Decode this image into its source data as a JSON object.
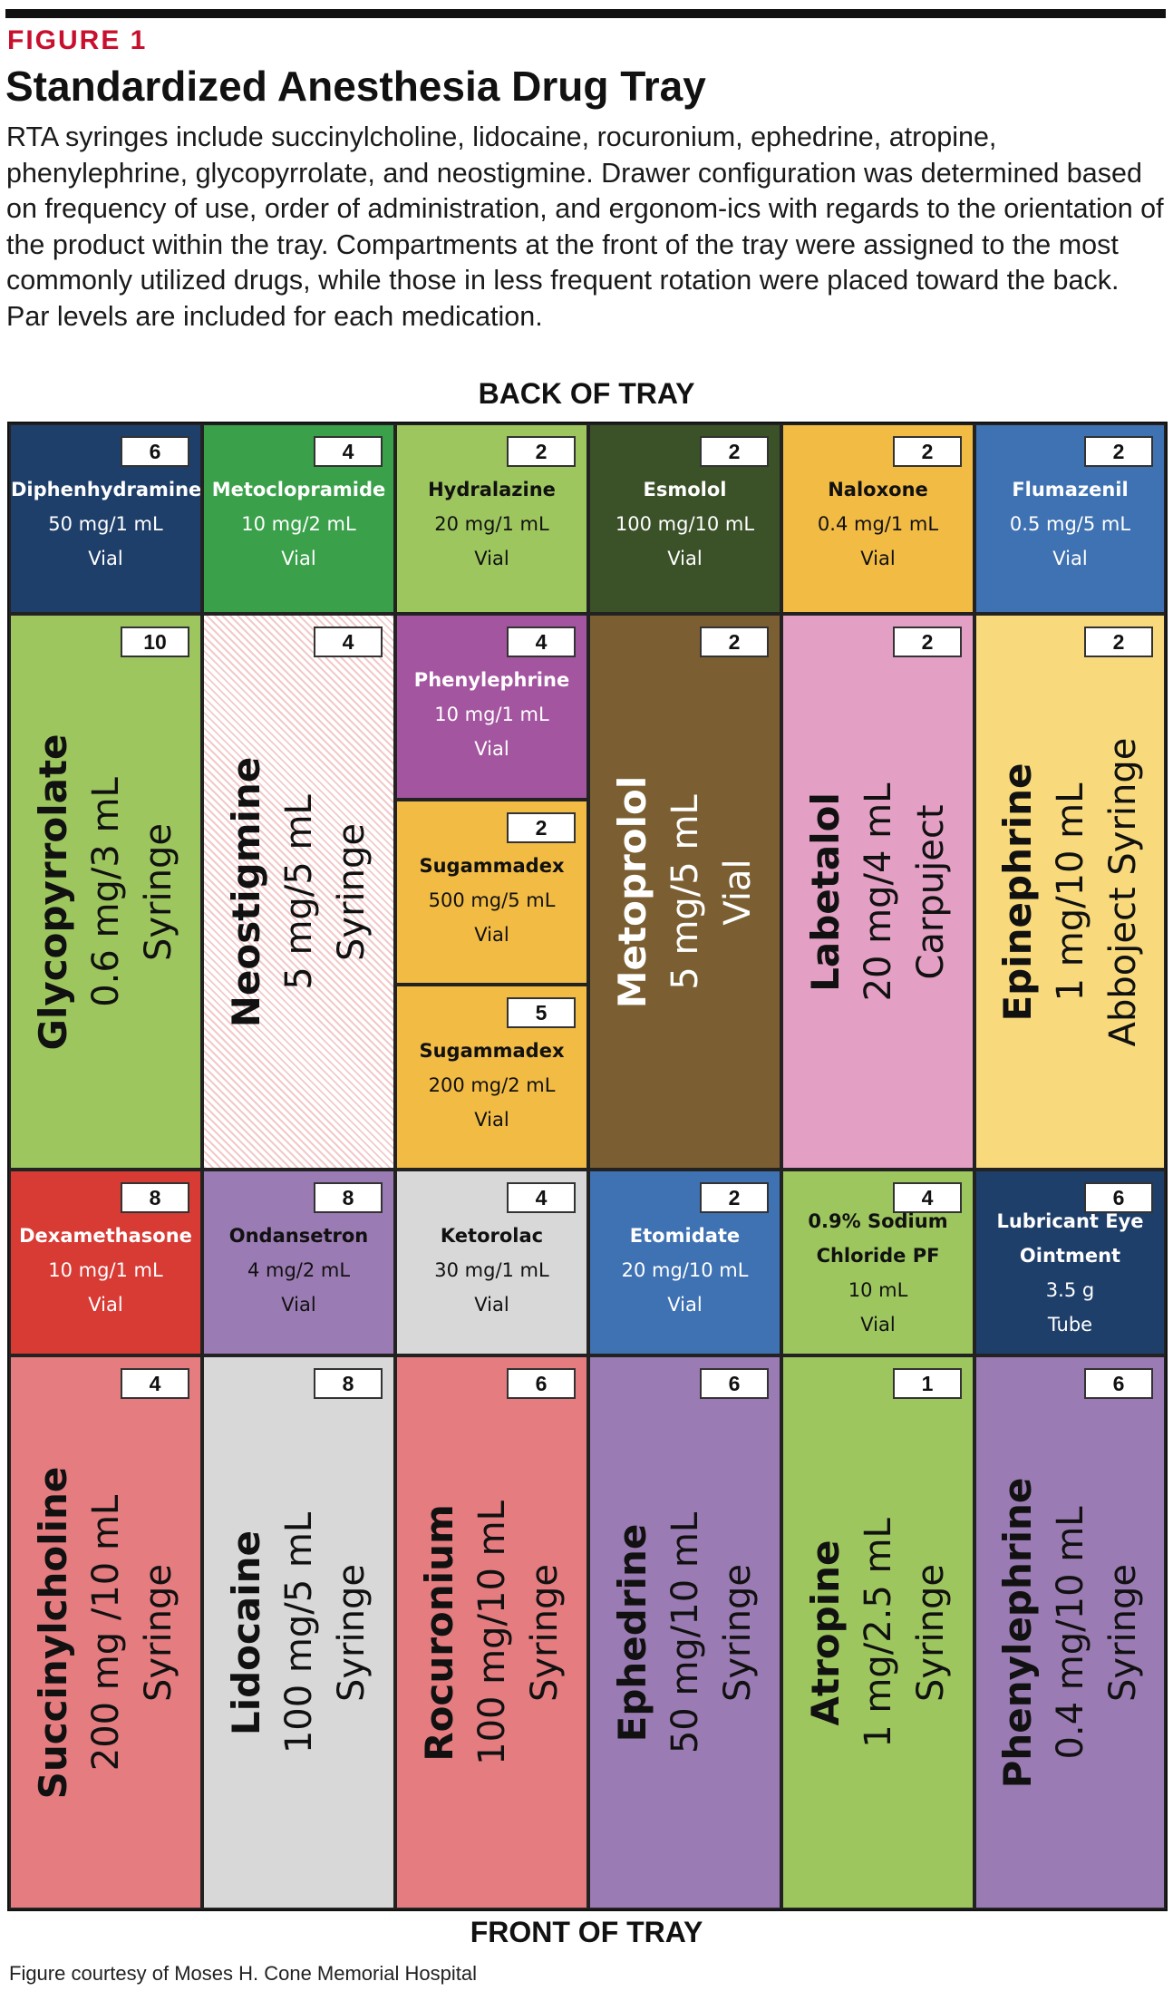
{
  "figure_label": "FIGURE 1",
  "title": "Standardized Anesthesia Drug Tray",
  "caption": "RTA syringes include succinylcholine, lidocaine, rocuronium, ephedrine, atropine, phenylephrine, glycopyrrolate, and neostigmine. Drawer configuration was determined based on frequency of use, order of administration, and ergonom-ics with regards to the orientation of the product within the tray. Compartments at the front of the tray were assigned to the most commonly utilized drugs, while those in less frequent rotation were placed toward the back. Par levels are included for each medication.",
  "back_label": "BACK OF TRAY",
  "front_label": "FRONT OF TRAY",
  "credit": "Figure courtesy of Moses H. Cone Memorial Hospital",
  "tray": {
    "row1": [
      {
        "name": "Diphenhydramine",
        "conc": "50 mg/1 mL",
        "form": "Vial",
        "par": "6",
        "color": "#1f3f6b"
      },
      {
        "name": "Metoclopramide",
        "conc": "10 mg/2 mL",
        "form": "Vial",
        "par": "4",
        "color": "#3aa04a"
      },
      {
        "name": "Hydralazine",
        "conc": "20 mg/1 mL",
        "form": "Vial",
        "par": "2",
        "color": "#9dc65f"
      },
      {
        "name": "Esmolol",
        "conc": "100 mg/10 mL",
        "form": "Vial",
        "par": "2",
        "color": "#3b5128"
      },
      {
        "name": "Naloxone",
        "conc": "0.4 mg/1 mL",
        "form": "Vial",
        "par": "2",
        "color": "#f2bb44"
      },
      {
        "name": "Flumazenil",
        "conc": "0.5 mg/5 mL",
        "form": "Vial",
        "par": "2",
        "color": "#3f72b2"
      }
    ],
    "row2": {
      "glycopyrrolate": {
        "name": "Glycopyrrolate",
        "conc": "0.6 mg/3 mL",
        "form": "Syringe",
        "par": "10",
        "color": "#9dc65f"
      },
      "neostigmine": {
        "name": "Neostigmine",
        "conc": "5 mg/5 mL",
        "form": "Syringe",
        "par": "4",
        "color": "#f3c9c9"
      },
      "phenylephrine_vial": {
        "name": "Phenylephrine",
        "conc": "10 mg/1 mL",
        "form": "Vial",
        "par": "4",
        "color": "#a4559f"
      },
      "sugammadex_500": {
        "name": "Sugammadex",
        "conc": "500 mg/5 mL",
        "form": "Vial",
        "par": "2",
        "color": "#f2bb44"
      },
      "sugammadex_200": {
        "name": "Sugammadex",
        "conc": "200 mg/2 mL",
        "form": "Vial",
        "par": "5",
        "color": "#f2bb44"
      },
      "metoprolol": {
        "name": "Metoprolol",
        "conc": "5 mg/5 mL",
        "form": "Vial",
        "par": "2",
        "color": "#7b5f32"
      },
      "labetalol": {
        "name": "Labetalol",
        "conc": "20 mg/4 mL",
        "form": "Carpuject",
        "par": "2",
        "color": "#e3a0c4"
      },
      "epinephrine": {
        "name": "Epinephrine",
        "conc": "1 mg/10 mL",
        "form": "Abboject Syringe",
        "par": "2",
        "color": "#f8da7c"
      }
    },
    "row3": [
      {
        "name": "Dexamethasone",
        "conc": "10 mg/1 mL",
        "form": "Vial",
        "par": "8",
        "color": "#d83a34"
      },
      {
        "name": "Ondansetron",
        "conc": "4 mg/2 mL",
        "form": "Vial",
        "par": "8",
        "color": "#9b7bb3"
      },
      {
        "name": "Ketorolac",
        "conc": "30 mg/1 mL",
        "form": "Vial",
        "par": "4",
        "color": "#d8d8d8"
      },
      {
        "name": "Etomidate",
        "conc": "20 mg/10 mL",
        "form": "Vial",
        "par": "2",
        "color": "#3f72b2"
      },
      {
        "name_line1": "0.9% Sodium",
        "name_line2": "Chloride PF",
        "conc": "10 mL",
        "form": "Vial",
        "par": "4",
        "color": "#9dc65f"
      },
      {
        "name_line1": "Lubricant Eye",
        "name_line2": "Ointment",
        "conc": "3.5 g",
        "form": "Tube",
        "par": "6",
        "color": "#1f3f6b"
      }
    ],
    "row4": [
      {
        "name": "Succinylcholine",
        "conc": "200 mg /10 mL",
        "form": "Syringe",
        "par": "4",
        "color": "#e47c80"
      },
      {
        "name": "Lidocaine",
        "conc": "100 mg/5 mL",
        "form": "Syringe",
        "par": "8",
        "color": "#d8d8d8"
      },
      {
        "name": "Rocuronium",
        "conc": "100 mg/10 mL",
        "form": "Syringe",
        "par": "6",
        "color": "#e47c80"
      },
      {
        "name": "Ephedrine",
        "conc": "50 mg/10 mL",
        "form": "Syringe",
        "par": "6",
        "color": "#9b7bb3"
      },
      {
        "name": "Atropine",
        "conc": "1 mg/2.5 mL",
        "form": "Syringe",
        "par": "1",
        "color": "#9dc65f"
      },
      {
        "name": "Phenylephrine",
        "conc": "0.4 mg/10 mL",
        "form": "Syringe",
        "par": "6",
        "color": "#9b7bb3"
      }
    ]
  }
}
